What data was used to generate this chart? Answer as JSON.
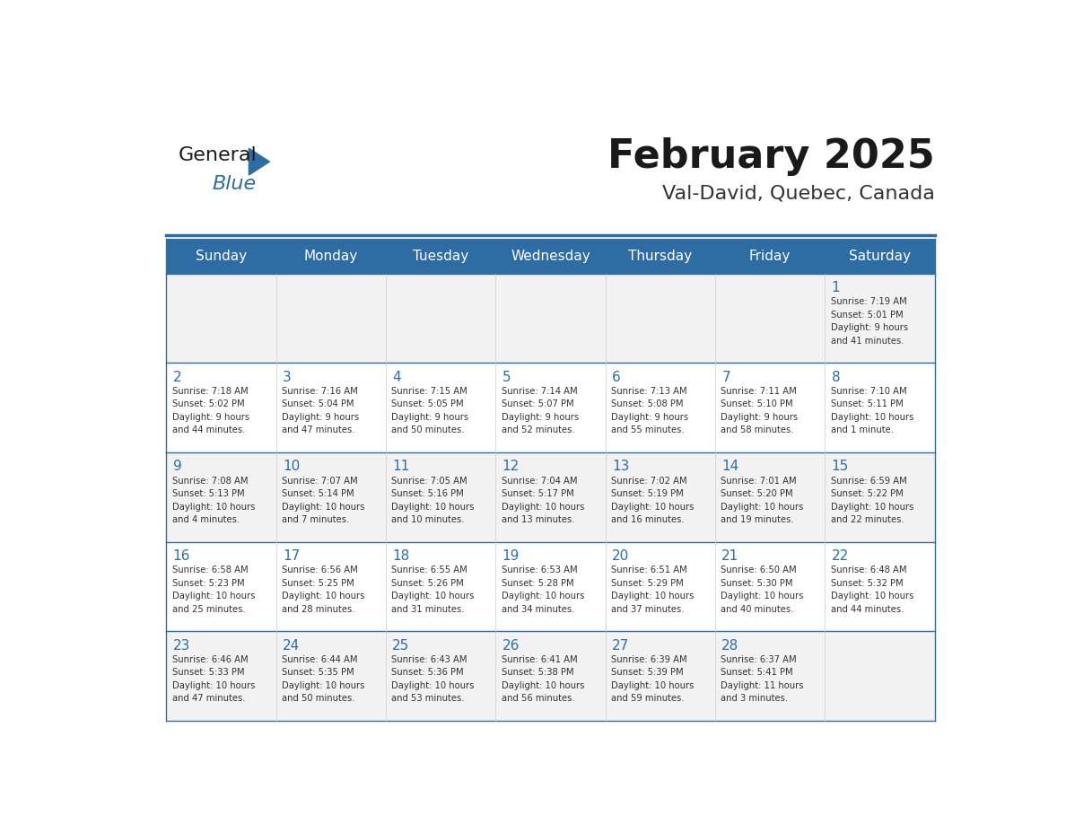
{
  "title": "February 2025",
  "subtitle": "Val-David, Quebec, Canada",
  "header_bg": "#2E6DA4",
  "header_text": "#FFFFFF",
  "cell_bg_odd": "#F2F2F2",
  "cell_bg_even": "#FFFFFF",
  "day_number_color": "#2E6DA4",
  "cell_text_color": "#333333",
  "grid_line_color": "#2E6DA4",
  "days_of_week": [
    "Sunday",
    "Monday",
    "Tuesday",
    "Wednesday",
    "Thursday",
    "Friday",
    "Saturday"
  ],
  "weeks": [
    [
      {
        "day": "",
        "info": ""
      },
      {
        "day": "",
        "info": ""
      },
      {
        "day": "",
        "info": ""
      },
      {
        "day": "",
        "info": ""
      },
      {
        "day": "",
        "info": ""
      },
      {
        "day": "",
        "info": ""
      },
      {
        "day": "1",
        "info": "Sunrise: 7:19 AM\nSunset: 5:01 PM\nDaylight: 9 hours\nand 41 minutes."
      }
    ],
    [
      {
        "day": "2",
        "info": "Sunrise: 7:18 AM\nSunset: 5:02 PM\nDaylight: 9 hours\nand 44 minutes."
      },
      {
        "day": "3",
        "info": "Sunrise: 7:16 AM\nSunset: 5:04 PM\nDaylight: 9 hours\nand 47 minutes."
      },
      {
        "day": "4",
        "info": "Sunrise: 7:15 AM\nSunset: 5:05 PM\nDaylight: 9 hours\nand 50 minutes."
      },
      {
        "day": "5",
        "info": "Sunrise: 7:14 AM\nSunset: 5:07 PM\nDaylight: 9 hours\nand 52 minutes."
      },
      {
        "day": "6",
        "info": "Sunrise: 7:13 AM\nSunset: 5:08 PM\nDaylight: 9 hours\nand 55 minutes."
      },
      {
        "day": "7",
        "info": "Sunrise: 7:11 AM\nSunset: 5:10 PM\nDaylight: 9 hours\nand 58 minutes."
      },
      {
        "day": "8",
        "info": "Sunrise: 7:10 AM\nSunset: 5:11 PM\nDaylight: 10 hours\nand 1 minute."
      }
    ],
    [
      {
        "day": "9",
        "info": "Sunrise: 7:08 AM\nSunset: 5:13 PM\nDaylight: 10 hours\nand 4 minutes."
      },
      {
        "day": "10",
        "info": "Sunrise: 7:07 AM\nSunset: 5:14 PM\nDaylight: 10 hours\nand 7 minutes."
      },
      {
        "day": "11",
        "info": "Sunrise: 7:05 AM\nSunset: 5:16 PM\nDaylight: 10 hours\nand 10 minutes."
      },
      {
        "day": "12",
        "info": "Sunrise: 7:04 AM\nSunset: 5:17 PM\nDaylight: 10 hours\nand 13 minutes."
      },
      {
        "day": "13",
        "info": "Sunrise: 7:02 AM\nSunset: 5:19 PM\nDaylight: 10 hours\nand 16 minutes."
      },
      {
        "day": "14",
        "info": "Sunrise: 7:01 AM\nSunset: 5:20 PM\nDaylight: 10 hours\nand 19 minutes."
      },
      {
        "day": "15",
        "info": "Sunrise: 6:59 AM\nSunset: 5:22 PM\nDaylight: 10 hours\nand 22 minutes."
      }
    ],
    [
      {
        "day": "16",
        "info": "Sunrise: 6:58 AM\nSunset: 5:23 PM\nDaylight: 10 hours\nand 25 minutes."
      },
      {
        "day": "17",
        "info": "Sunrise: 6:56 AM\nSunset: 5:25 PM\nDaylight: 10 hours\nand 28 minutes."
      },
      {
        "day": "18",
        "info": "Sunrise: 6:55 AM\nSunset: 5:26 PM\nDaylight: 10 hours\nand 31 minutes."
      },
      {
        "day": "19",
        "info": "Sunrise: 6:53 AM\nSunset: 5:28 PM\nDaylight: 10 hours\nand 34 minutes."
      },
      {
        "day": "20",
        "info": "Sunrise: 6:51 AM\nSunset: 5:29 PM\nDaylight: 10 hours\nand 37 minutes."
      },
      {
        "day": "21",
        "info": "Sunrise: 6:50 AM\nSunset: 5:30 PM\nDaylight: 10 hours\nand 40 minutes."
      },
      {
        "day": "22",
        "info": "Sunrise: 6:48 AM\nSunset: 5:32 PM\nDaylight: 10 hours\nand 44 minutes."
      }
    ],
    [
      {
        "day": "23",
        "info": "Sunrise: 6:46 AM\nSunset: 5:33 PM\nDaylight: 10 hours\nand 47 minutes."
      },
      {
        "day": "24",
        "info": "Sunrise: 6:44 AM\nSunset: 5:35 PM\nDaylight: 10 hours\nand 50 minutes."
      },
      {
        "day": "25",
        "info": "Sunrise: 6:43 AM\nSunset: 5:36 PM\nDaylight: 10 hours\nand 53 minutes."
      },
      {
        "day": "26",
        "info": "Sunrise: 6:41 AM\nSunset: 5:38 PM\nDaylight: 10 hours\nand 56 minutes."
      },
      {
        "day": "27",
        "info": "Sunrise: 6:39 AM\nSunset: 5:39 PM\nDaylight: 10 hours\nand 59 minutes."
      },
      {
        "day": "28",
        "info": "Sunrise: 6:37 AM\nSunset: 5:41 PM\nDaylight: 11 hours\nand 3 minutes."
      },
      {
        "day": "",
        "info": ""
      }
    ]
  ],
  "logo_general_color": "#1a1a1a",
  "logo_blue_color": "#2E6DA4",
  "logo_triangle_color": "#2E6DA4"
}
